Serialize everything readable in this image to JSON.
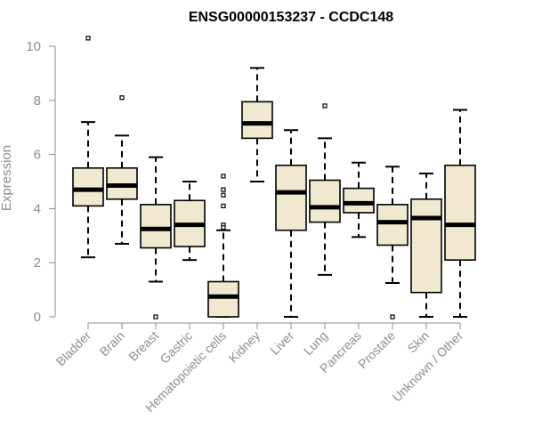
{
  "chart_data": {
    "type": "boxplot",
    "title": "ENSG00000153237 - CCDC148",
    "ylabel": "Expression",
    "xlabel": "",
    "ylim": [
      0,
      10.5
    ],
    "yticks": [
      0,
      2,
      4,
      6,
      8,
      10
    ],
    "grid": false,
    "legend": "none",
    "box_fill": "#f0e9d0",
    "box_stroke": "#000000",
    "categories": [
      "Bladder",
      "Brain",
      "Breast",
      "Gastric",
      "Hematopoietic cells",
      "Kidney",
      "Liver",
      "Lung",
      "Pancreas",
      "Prostate",
      "Skin",
      "Unknown / Other"
    ],
    "boxes": [
      {
        "whisker_low": 2.2,
        "q1": 4.1,
        "median": 4.7,
        "q3": 5.5,
        "whisker_high": 7.2,
        "outliers": [
          10.3
        ]
      },
      {
        "whisker_low": 2.7,
        "q1": 4.35,
        "median": 4.85,
        "q3": 5.5,
        "whisker_high": 6.7,
        "outliers": [
          8.1
        ]
      },
      {
        "whisker_low": 1.3,
        "q1": 2.55,
        "median": 3.25,
        "q3": 4.15,
        "whisker_high": 5.9,
        "outliers": [
          0.0
        ]
      },
      {
        "whisker_low": 2.1,
        "q1": 2.6,
        "median": 3.4,
        "q3": 4.3,
        "whisker_high": 5.0,
        "outliers": []
      },
      {
        "whisker_low": 0.0,
        "q1": 0.0,
        "median": 0.75,
        "q3": 1.3,
        "whisker_high": 3.2,
        "outliers": [
          5.2,
          4.7,
          4.5,
          4.1,
          3.4,
          3.3
        ]
      },
      {
        "whisker_low": 5.0,
        "q1": 6.6,
        "median": 7.15,
        "q3": 7.95,
        "whisker_high": 9.2,
        "outliers": []
      },
      {
        "whisker_low": 0.0,
        "q1": 3.2,
        "median": 4.6,
        "q3": 5.6,
        "whisker_high": 6.9,
        "outliers": []
      },
      {
        "whisker_low": 1.55,
        "q1": 3.5,
        "median": 4.05,
        "q3": 5.05,
        "whisker_high": 6.6,
        "outliers": [
          7.8
        ]
      },
      {
        "whisker_low": 2.95,
        "q1": 3.85,
        "median": 4.2,
        "q3": 4.75,
        "whisker_high": 5.7,
        "outliers": []
      },
      {
        "whisker_low": 1.25,
        "q1": 2.65,
        "median": 3.5,
        "q3": 4.15,
        "whisker_high": 5.55,
        "outliers": [
          0.0
        ]
      },
      {
        "whisker_low": 0.0,
        "q1": 0.9,
        "median": 3.65,
        "q3": 4.35,
        "whisker_high": 5.3,
        "outliers": []
      },
      {
        "whisker_low": 0.0,
        "q1": 2.1,
        "median": 3.4,
        "q3": 5.6,
        "whisker_high": 7.65,
        "outliers": []
      }
    ]
  }
}
